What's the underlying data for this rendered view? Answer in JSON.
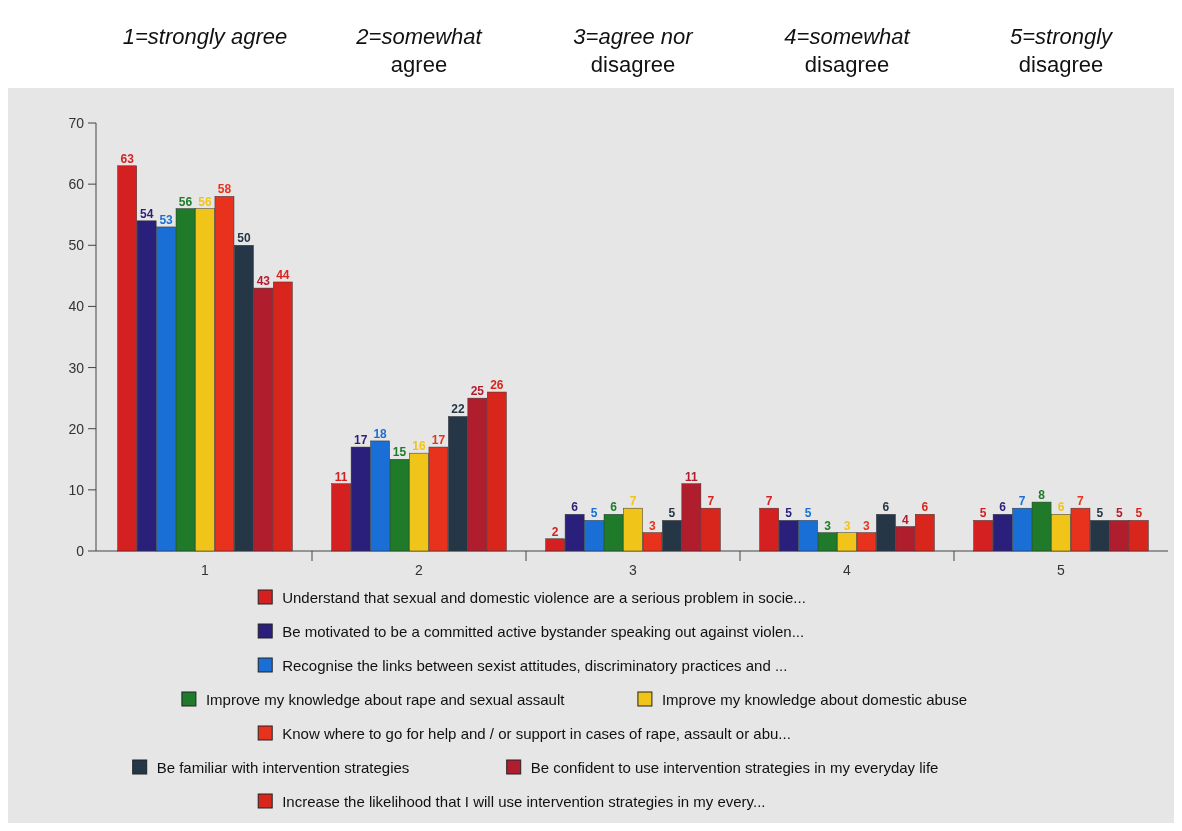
{
  "chart_data": {
    "type": "bar",
    "categories": [
      "1",
      "2",
      "3",
      "4",
      "5"
    ],
    "annotations": [
      "1=strongly agree",
      "2=somewhat\nagree",
      "3=agree nor\ndisagree",
      "4=somewhat\ndisagree",
      "5=strongly\ndisagree"
    ],
    "series": [
      {
        "name": "Understand that sexual and domestic violence are a serious problem in socie...",
        "color": "#d42020",
        "values": [
          63,
          11,
          2,
          7,
          5
        ]
      },
      {
        "name": "Be motivated to be a committed active bystander speaking out against violen...",
        "color": "#2a1f7a",
        "values": [
          54,
          17,
          6,
          5,
          6
        ]
      },
      {
        "name": "Recognise the links between sexist attitudes, discriminatory practices and ...",
        "color": "#1a6fd6",
        "values": [
          53,
          18,
          5,
          5,
          7
        ]
      },
      {
        "name": "Improve my knowledge about rape and sexual assault",
        "color": "#1f7a2a",
        "values": [
          56,
          15,
          6,
          3,
          8
        ]
      },
      {
        "name": "Improve my knowledge about domestic abuse",
        "color": "#f0c419",
        "values": [
          56,
          16,
          7,
          3,
          6
        ]
      },
      {
        "name": "Know where to go for help and / or support in cases of rape, assault or abu...",
        "color": "#e8321e",
        "values": [
          58,
          17,
          3,
          3,
          7
        ]
      },
      {
        "name": "Be familiar with intervention strategies",
        "color": "#253746",
        "values": [
          50,
          22,
          5,
          6,
          5
        ]
      },
      {
        "name": "Be confident to use intervention strategies in my everyday life",
        "color": "#b01e2e",
        "values": [
          43,
          25,
          11,
          4,
          5
        ]
      },
      {
        "name": "Increase the likelihood that I will use intervention strategies in my every...",
        "color": "#d9261c",
        "values": [
          44,
          26,
          7,
          6,
          5
        ]
      }
    ],
    "ylim": [
      0,
      70
    ],
    "yticks": [
      0,
      10,
      20,
      30,
      40,
      50,
      60,
      70
    ],
    "data_labels": true,
    "legend": "bottom"
  }
}
